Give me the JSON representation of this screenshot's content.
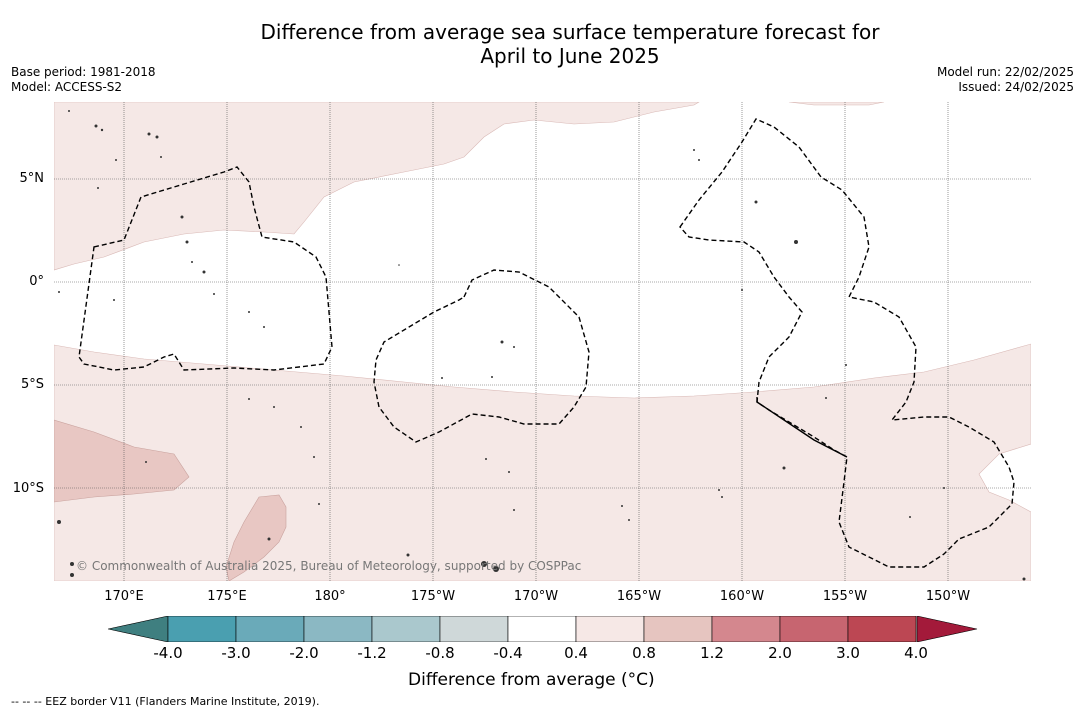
{
  "title_line1": "Difference from average sea surface temperature forecast for",
  "title_line2": "April to June 2025",
  "base_period": "Base period: 1981-2018",
  "model": "Model: ACCESS-S2",
  "model_run": "Model run: 22/02/2025",
  "issued": "Issued: 24/02/2025",
  "lat_labels": [
    "5°N",
    "0°",
    "5°S",
    "10°S"
  ],
  "lon_labels": [
    "170°E",
    "175°E",
    "180°",
    "175°W",
    "170°W",
    "165°W",
    "160°W",
    "155°W",
    "150°W"
  ],
  "copyright": "© Commonwealth of Australia 2025, Bureau of Meteorology, supported by COSPPac",
  "colorbar": {
    "ticks": [
      "-4.0",
      "-3.0",
      "-2.0",
      "-1.2",
      "-0.8",
      "-0.4",
      "0.4",
      "0.8",
      "1.2",
      "2.0",
      "3.0",
      "4.0"
    ],
    "colors": [
      "#4a9fb0",
      "#6aaab9",
      "#8bb8c3",
      "#aac8cd",
      "#cfd8d9",
      "#ffffff",
      "#f6e8e6",
      "#e6c5c0",
      "#d4878e",
      "#c76570",
      "#bc4753"
    ],
    "under_color": "#3f7f80",
    "over_color": "#a31a3a",
    "label": "Difference from average (°C)"
  },
  "footer": "-- -- -- EEZ border V11 (Flanders Marine Institute, 2019)."
}
